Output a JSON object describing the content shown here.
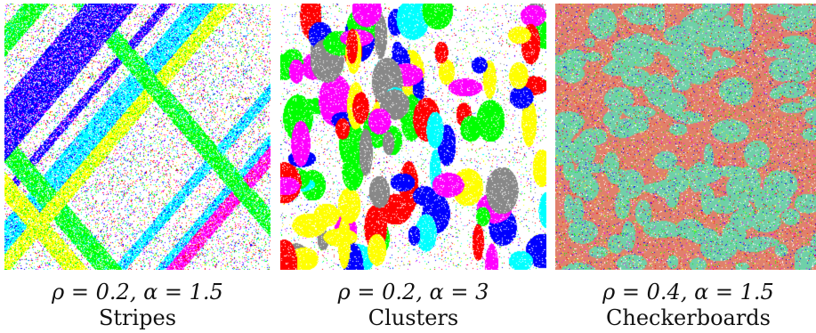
{
  "panels": [
    {
      "params": "ρ = 0.2, α = 1.5",
      "name": "Stripes",
      "pattern": "stripes",
      "colors": [
        "#ff0000",
        "#ffff00",
        "#00ff00",
        "#00ffff",
        "#0000ff",
        "#ff00ff"
      ]
    },
    {
      "params": "ρ = 0.2, α = 3",
      "name": "Clusters",
      "pattern": "clusters",
      "colors": [
        "#ff0000",
        "#ffff00",
        "#00ff00",
        "#0000ff",
        "#ff00ff",
        "#00ffff",
        "#888888"
      ]
    },
    {
      "params": "ρ = 0.4, α = 1.5",
      "name": "Checkerboards",
      "pattern": "checkerboards",
      "colors": [
        "#e0806c",
        "#6fd0a8",
        "#ff0000",
        "#ffff00",
        "#0000ff",
        "#00ff00",
        "#ff00ff"
      ]
    }
  ]
}
